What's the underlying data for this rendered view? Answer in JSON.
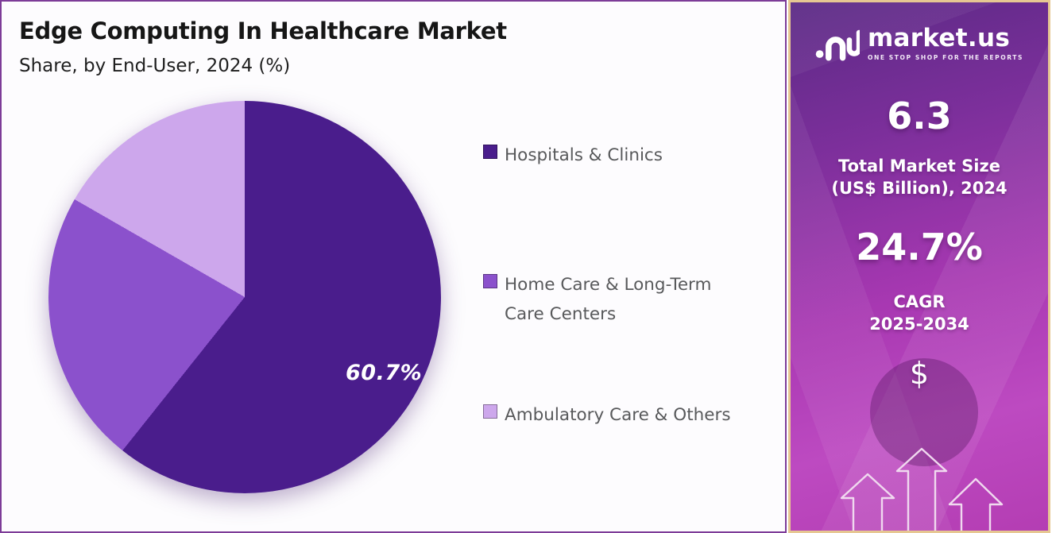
{
  "panel": {
    "title": "Edge Computing In Healthcare Market",
    "subtitle": "Share, by End-User, 2024 (%)"
  },
  "chart_data": {
    "type": "pie",
    "title": "Edge Computing In Healthcare Market",
    "subtitle": "Share, by End-User, 2024 (%)",
    "labels": [
      "Hospitals & Clinics",
      "Home Care & Long-Term Care Centers",
      "Ambulatory Care & Others"
    ],
    "values": [
      60.7,
      22.6,
      16.7
    ],
    "colors": [
      "#4a1d8c",
      "#8b51cc",
      "#cda7ec"
    ],
    "start_angle_deg": 0,
    "direction": "clockwise",
    "legend_position": "right",
    "data_label": {
      "text": "60.7%",
      "slice": "Hospitals & Clinics",
      "color": "#ffffff"
    }
  },
  "legend": {
    "items": [
      {
        "label": "Hospitals & Clinics",
        "color": "#4a1d8c"
      },
      {
        "label": "Home Care & Long-Term Care Centers",
        "color": "#8b51cc"
      },
      {
        "label": "Ambulatory Care & Others",
        "color": "#cda7ec"
      }
    ]
  },
  "sidebar": {
    "logo": {
      "text": "market.us",
      "tagline": "ONE STOP SHOP FOR THE REPORTS"
    },
    "stats": [
      {
        "value": "6.3",
        "label": "Total Market Size (US$ Billion), 2024"
      },
      {
        "value": "24.7%",
        "label": "CAGR 2025-2034"
      }
    ],
    "dollar_symbol": "$",
    "colors": {
      "gradient_top": "#5b2a85",
      "gradient_mid": "#a838b2",
      "gradient_bottom": "#b43db3",
      "border": "#e6c792",
      "arrow_outline": "#f0d9ef"
    }
  }
}
